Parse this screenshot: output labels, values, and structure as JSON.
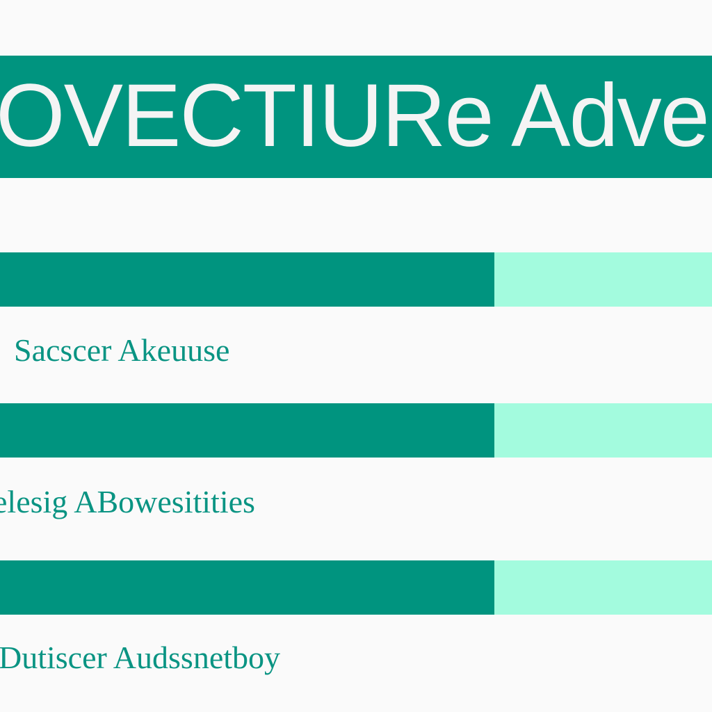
{
  "header": {
    "title": "OVECTIURe Advecs",
    "bg_color": "#00947f",
    "text_color": "#f4f4f4"
  },
  "colors": {
    "background": "#fafafa",
    "bar_primary": "#00947f",
    "bar_secondary": "#a3fbde",
    "label_text": "#0a9483"
  },
  "items": [
    {
      "label": "Sacscer Akeuuse",
      "progress": 0.694
    },
    {
      "label": "elesig ABowesitities",
      "progress": 0.694
    },
    {
      "label": "Dutiscer Audssnetboy",
      "progress": 0.694
    }
  ]
}
